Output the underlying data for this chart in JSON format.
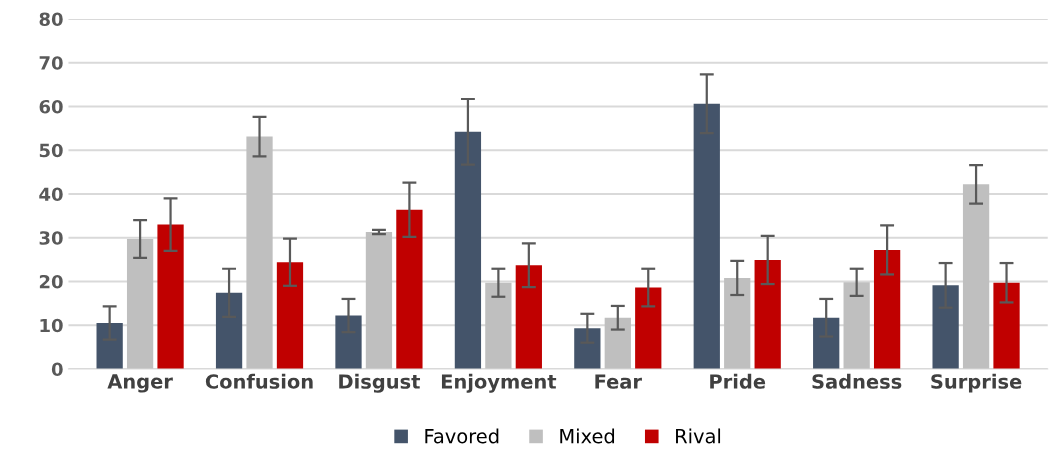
{
  "chart_data": {
    "type": "bar",
    "categories": [
      "Anger",
      "Confusion",
      "Disgust",
      "Enjoyment",
      "Fear",
      "Pride",
      "Sadness",
      "Surprise"
    ],
    "series": [
      {
        "name": "Favored",
        "color": "#44546a",
        "values": [
          10.5,
          17.4,
          12.2,
          54.2,
          9.3,
          60.6,
          11.7,
          19.1
        ],
        "errors": [
          3.8,
          5.5,
          3.8,
          7.5,
          3.3,
          6.7,
          4.3,
          5.1
        ]
      },
      {
        "name": "Mixed",
        "color": "#bfbfbf",
        "values": [
          29.7,
          53.1,
          31.3,
          19.7,
          11.7,
          20.8,
          19.8,
          42.2
        ],
        "errors": [
          4.3,
          4.5,
          0.5,
          3.2,
          2.7,
          3.9,
          3.1,
          4.4
        ]
      },
      {
        "name": "Rival",
        "color": "#c00000",
        "values": [
          33.0,
          24.4,
          36.4,
          23.7,
          18.6,
          24.9,
          27.2,
          19.7
        ],
        "errors": [
          6.0,
          5.4,
          6.2,
          5.0,
          4.3,
          5.5,
          5.6,
          4.5
        ]
      }
    ],
    "ylim": [
      0,
      80
    ],
    "yticks": [
      0,
      10,
      20,
      30,
      40,
      50,
      60,
      70,
      80
    ],
    "grid": "y",
    "legend": "bottom"
  }
}
